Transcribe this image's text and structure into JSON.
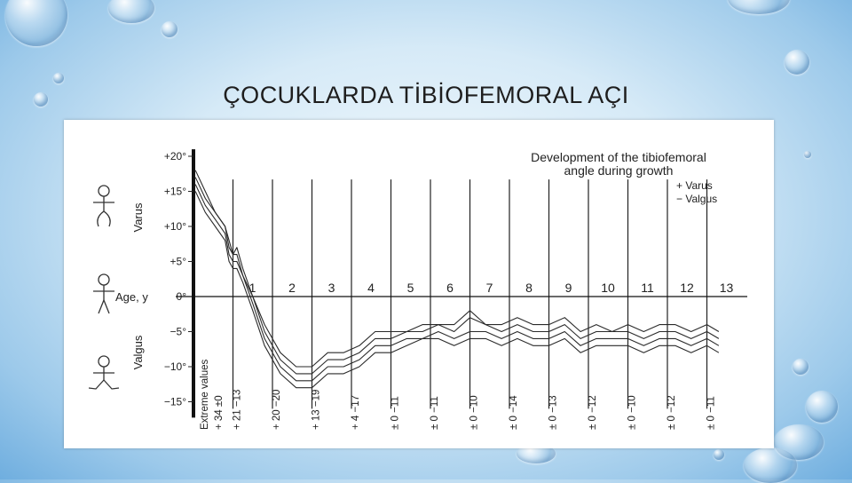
{
  "slide": {
    "title": "ÇOCUKLARDA TİBİOFEMORAL AÇI"
  },
  "chart_data": {
    "type": "line",
    "title_lines": [
      "Development of the tibiofemoral",
      "angle during growth"
    ],
    "legend": [
      "+ Varus",
      "− Valgus"
    ],
    "legend_placement": "top-right",
    "y_tick_labels": [
      "+20°",
      "+15°",
      "+10°",
      "+5°",
      "0°",
      "−5°",
      "−10°",
      "−15°"
    ],
    "y_ticks": [
      20,
      15,
      10,
      5,
      0,
      -5,
      -10,
      -15
    ],
    "ylim": [
      -16,
      21
    ],
    "region_labels": {
      "varus": "Varus",
      "valgus": "Valgus",
      "age": "Age, y"
    },
    "x_ages": [
      "1",
      "2",
      "3",
      "4",
      "5",
      "6",
      "7",
      "8",
      "9",
      "10",
      "11",
      "12",
      "13"
    ],
    "extreme_values_label": "Extreme values",
    "extreme_values": [
      "+ 34 ±0",
      "+ 21 −13",
      "+ 20 −20",
      "+ 13 −19",
      "+ 4 −17",
      "± 0 −11",
      "± 0 −11",
      "± 0 −10",
      "± 0 −14",
      "± 0 −13",
      "± 0 −12",
      "± 0 −10",
      "± 0 −12",
      "± 0 −11"
    ],
    "x_range": [
      0,
      13.7
    ],
    "series": [
      {
        "x": [
          0.05,
          0.3,
          0.55,
          0.8,
          0.9,
          1.0,
          1.1,
          1.25,
          1.5,
          1.8,
          2.2,
          2.6,
          3.0,
          3.4,
          3.8,
          4.2,
          4.6,
          5.0,
          5.4,
          5.8,
          6.2,
          6.6,
          7.0,
          7.4,
          7.8,
          8.2,
          8.6,
          9.0,
          9.4,
          9.8,
          10.2,
          10.6,
          11.0,
          11.4,
          11.8,
          12.2,
          12.6,
          13.0,
          13.3
        ],
        "y": [
          18,
          15,
          12,
          10,
          7,
          6,
          7,
          4,
          0,
          -5,
          -9,
          -11,
          -11,
          -9,
          -9,
          -8,
          -6,
          -6,
          -5,
          -5,
          -4,
          -5,
          -3,
          -4,
          -5,
          -4,
          -5,
          -5,
          -4,
          -6,
          -5,
          -5,
          -5,
          -6,
          -5,
          -5,
          -6,
          -5,
          -6
        ]
      },
      {
        "x": [
          0.05,
          0.3,
          0.55,
          0.8,
          0.9,
          1.0,
          1.1,
          1.25,
          1.5,
          1.8,
          2.2,
          2.6,
          3.0,
          3.4,
          3.8,
          4.2,
          4.6,
          5.0,
          5.4,
          5.8,
          6.2,
          6.6,
          7.0,
          7.4,
          7.8,
          8.2,
          8.6,
          9.0,
          9.4,
          9.8,
          10.2,
          10.6,
          11.0,
          11.4,
          11.8,
          12.2,
          12.6,
          13.0,
          13.3
        ],
        "y": [
          16,
          13,
          11,
          9,
          6,
          5,
          5,
          3,
          -1,
          -6,
          -10,
          -12,
          -12,
          -10,
          -10,
          -9,
          -7,
          -7,
          -6,
          -6,
          -5,
          -6,
          -5,
          -5,
          -6,
          -5,
          -6,
          -6,
          -5,
          -7,
          -6,
          -6,
          -6,
          -7,
          -6,
          -6,
          -7,
          -6,
          -7
        ]
      },
      {
        "x": [
          0.05,
          0.3,
          0.55,
          0.8,
          0.9,
          1.0,
          1.1,
          1.25,
          1.5,
          1.8,
          2.2,
          2.6,
          3.0,
          3.4,
          3.8,
          4.2,
          4.6,
          5.0,
          5.4,
          5.8,
          6.2,
          6.6,
          7.0,
          7.4,
          7.8,
          8.2,
          8.6,
          9.0,
          9.4,
          9.8,
          10.2,
          10.6,
          11.0,
          11.4,
          11.8,
          12.2,
          12.6,
          13.0,
          13.3
        ],
        "y": [
          15,
          12,
          10,
          8,
          5,
          4,
          4,
          2,
          -2,
          -7,
          -11,
          -13,
          -13,
          -11,
          -11,
          -10,
          -8,
          -8,
          -7,
          -6,
          -6,
          -7,
          -6,
          -6,
          -7,
          -6,
          -7,
          -7,
          -6,
          -8,
          -7,
          -7,
          -7,
          -8,
          -7,
          -7,
          -8,
          -7,
          -8
        ]
      },
      {
        "x": [
          0.05,
          0.3,
          0.55,
          0.8,
          0.9,
          1.0,
          1.1,
          1.25,
          1.5,
          1.8,
          2.2,
          2.6,
          3.0,
          3.4,
          3.8,
          4.2,
          4.6,
          5.0,
          5.4,
          5.8,
          6.2,
          6.6,
          7.0,
          7.4,
          7.8,
          8.2,
          8.6,
          9.0,
          9.4,
          9.8,
          10.2,
          10.6,
          11.0,
          11.4,
          11.8,
          12.2,
          12.6,
          13.0,
          13.3
        ],
        "y": [
          17,
          14,
          12,
          10,
          8,
          6,
          6,
          3,
          0,
          -4,
          -8,
          -10,
          -10,
          -8,
          -8,
          -7,
          -5,
          -5,
          -5,
          -4,
          -4,
          -4,
          -2,
          -4,
          -4,
          -3,
          -4,
          -4,
          -3,
          -5,
          -4,
          -5,
          -4,
          -5,
          -4,
          -4,
          -5,
          -4,
          -5
        ]
      }
    ],
    "grid": "vertical age lines",
    "zero_line": true
  }
}
